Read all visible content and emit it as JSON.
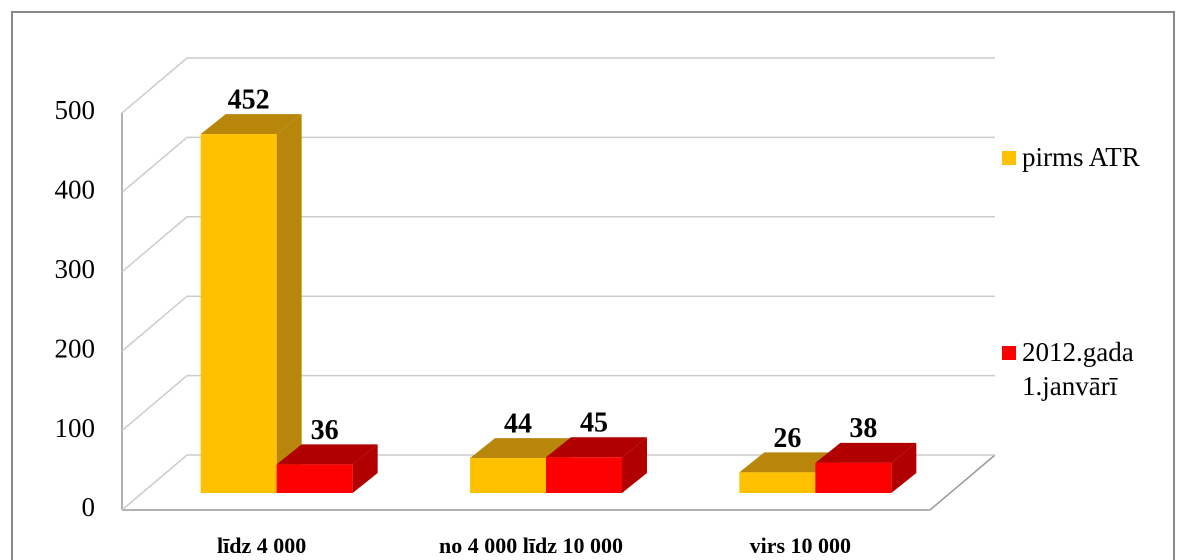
{
  "chart_data": {
    "type": "bar3d",
    "categories": [
      "līdz 4 000",
      "no 4 000 līdz 10 000",
      "virs 10 000"
    ],
    "series": [
      {
        "name": "pirms ATR",
        "color": "#FFC000",
        "side_color": "#B8860B",
        "values": [
          452,
          44,
          26
        ]
      },
      {
        "name": "2012.gada 1.janvārī",
        "color": "#FF0000",
        "side_color": "#B00000",
        "values": [
          36,
          45,
          38
        ]
      }
    ],
    "ylim": [
      0,
      500
    ],
    "yticks": [
      0,
      100,
      200,
      300,
      400,
      500
    ],
    "grid": true,
    "legend": "right"
  }
}
